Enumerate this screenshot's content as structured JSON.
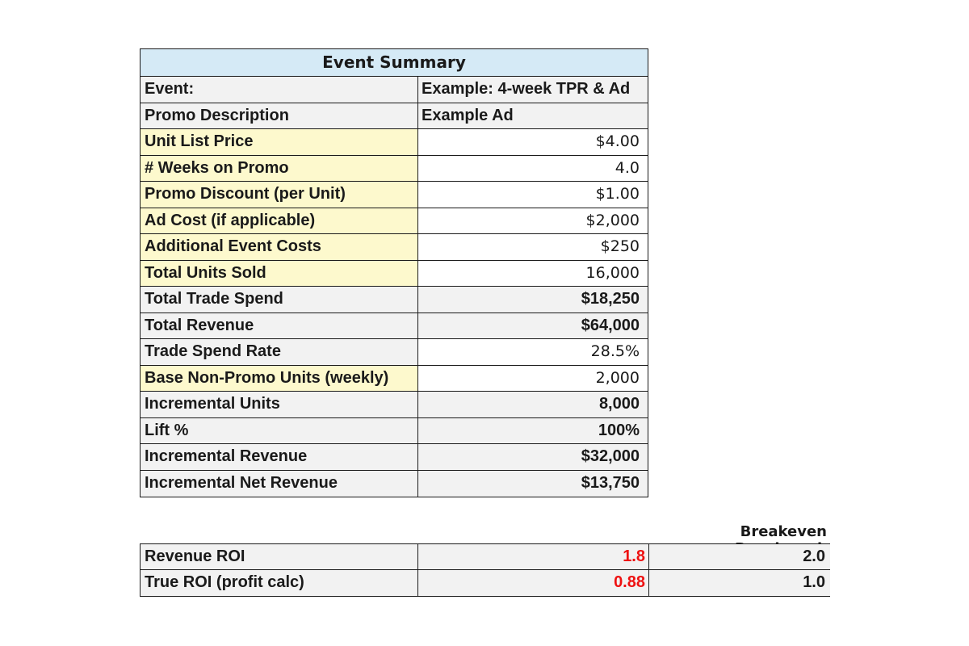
{
  "summary": {
    "title": "Event Summary",
    "rows": [
      {
        "label": "Event:",
        "value": "Example: 4-week TPR & Ad"
      },
      {
        "label": "Promo Description",
        "value": "Example Ad"
      },
      {
        "label": "Unit List Price",
        "value": "$4.00"
      },
      {
        "label": "# Weeks on Promo",
        "value": "4.0"
      },
      {
        "label": "Promo Discount (per Unit)",
        "value": "$1.00"
      },
      {
        "label": "Ad Cost (if applicable)",
        "value": "$2,000"
      },
      {
        "label": "Additional Event Costs",
        "value": "$250"
      },
      {
        "label": "Total Units Sold",
        "value": "16,000"
      },
      {
        "label": "Total Trade Spend",
        "value": "$18,250"
      },
      {
        "label": "Total Revenue",
        "value": "$64,000"
      },
      {
        "label": "Trade Spend Rate",
        "value": "28.5%"
      },
      {
        "label": "Base Non-Promo Units (weekly)",
        "value": "2,000"
      },
      {
        "label": "Incremental Units",
        "value": "8,000"
      },
      {
        "label": "Lift %",
        "value": "100%"
      },
      {
        "label": "Incremental Revenue",
        "value": "$32,000"
      },
      {
        "label": "Incremental Net Revenue",
        "value": "$13,750"
      }
    ]
  },
  "roi": {
    "benchmark_header": "Breakeven Benchmark",
    "rows": [
      {
        "label": "Revenue ROI",
        "value": "1.8",
        "benchmark": "2.0"
      },
      {
        "label": "True ROI (profit calc)",
        "value": "0.88",
        "benchmark": "1.0"
      }
    ],
    "value_color": "#ee1111"
  },
  "colors": {
    "header_fill": "#d5eaf6",
    "input_fill": "#fdf9cd",
    "calc_fill": "#f2f2f2"
  }
}
